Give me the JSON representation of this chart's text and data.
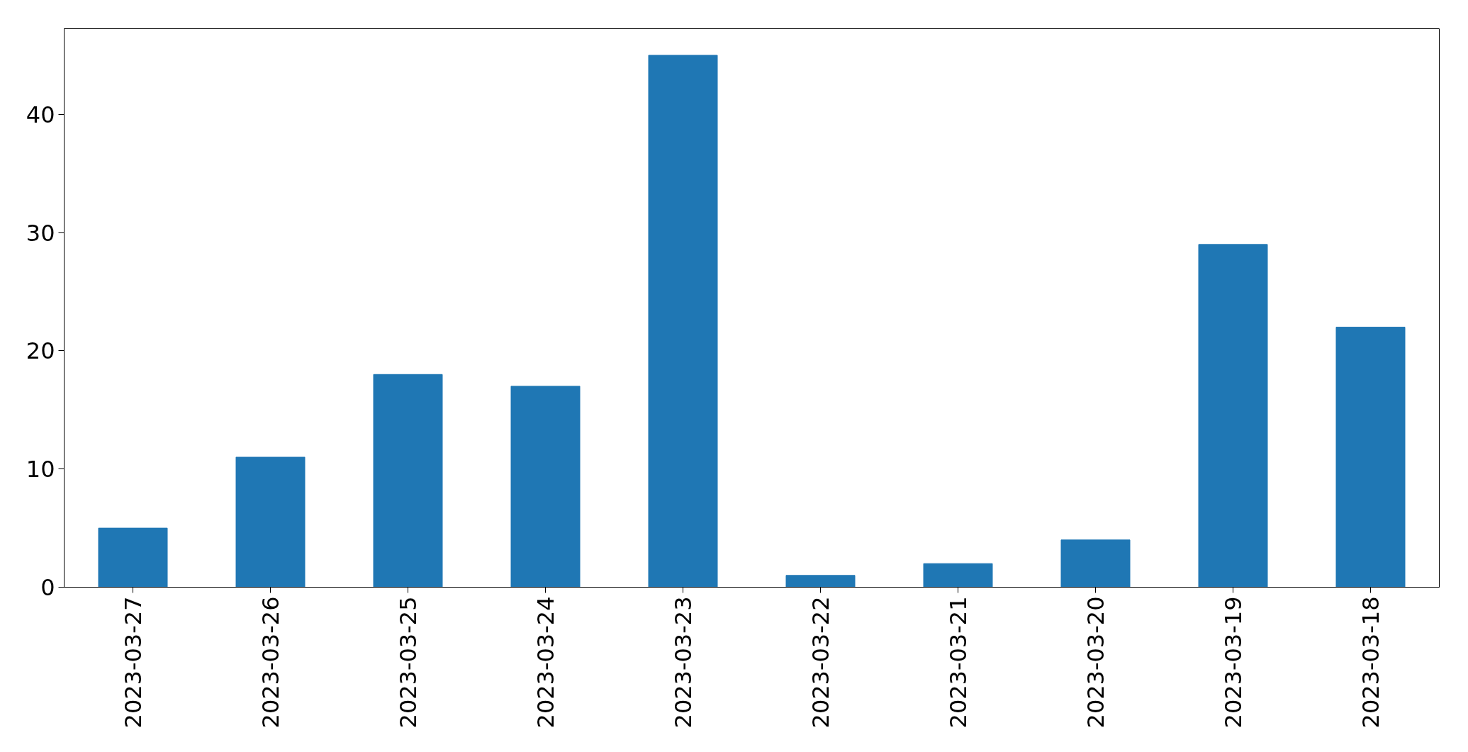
{
  "chart_data": {
    "type": "bar",
    "categories": [
      "2023-03-27",
      "2023-03-26",
      "2023-03-25",
      "2023-03-24",
      "2023-03-23",
      "2023-03-22",
      "2023-03-21",
      "2023-03-20",
      "2023-03-19",
      "2023-03-18"
    ],
    "values": [
      5,
      11,
      18,
      17,
      45,
      1,
      2,
      4,
      29,
      22
    ],
    "color": "#1f77b4",
    "ylim": [
      0,
      47.25
    ],
    "yticks": [
      0,
      10,
      20,
      30,
      40
    ],
    "grid": false
  }
}
